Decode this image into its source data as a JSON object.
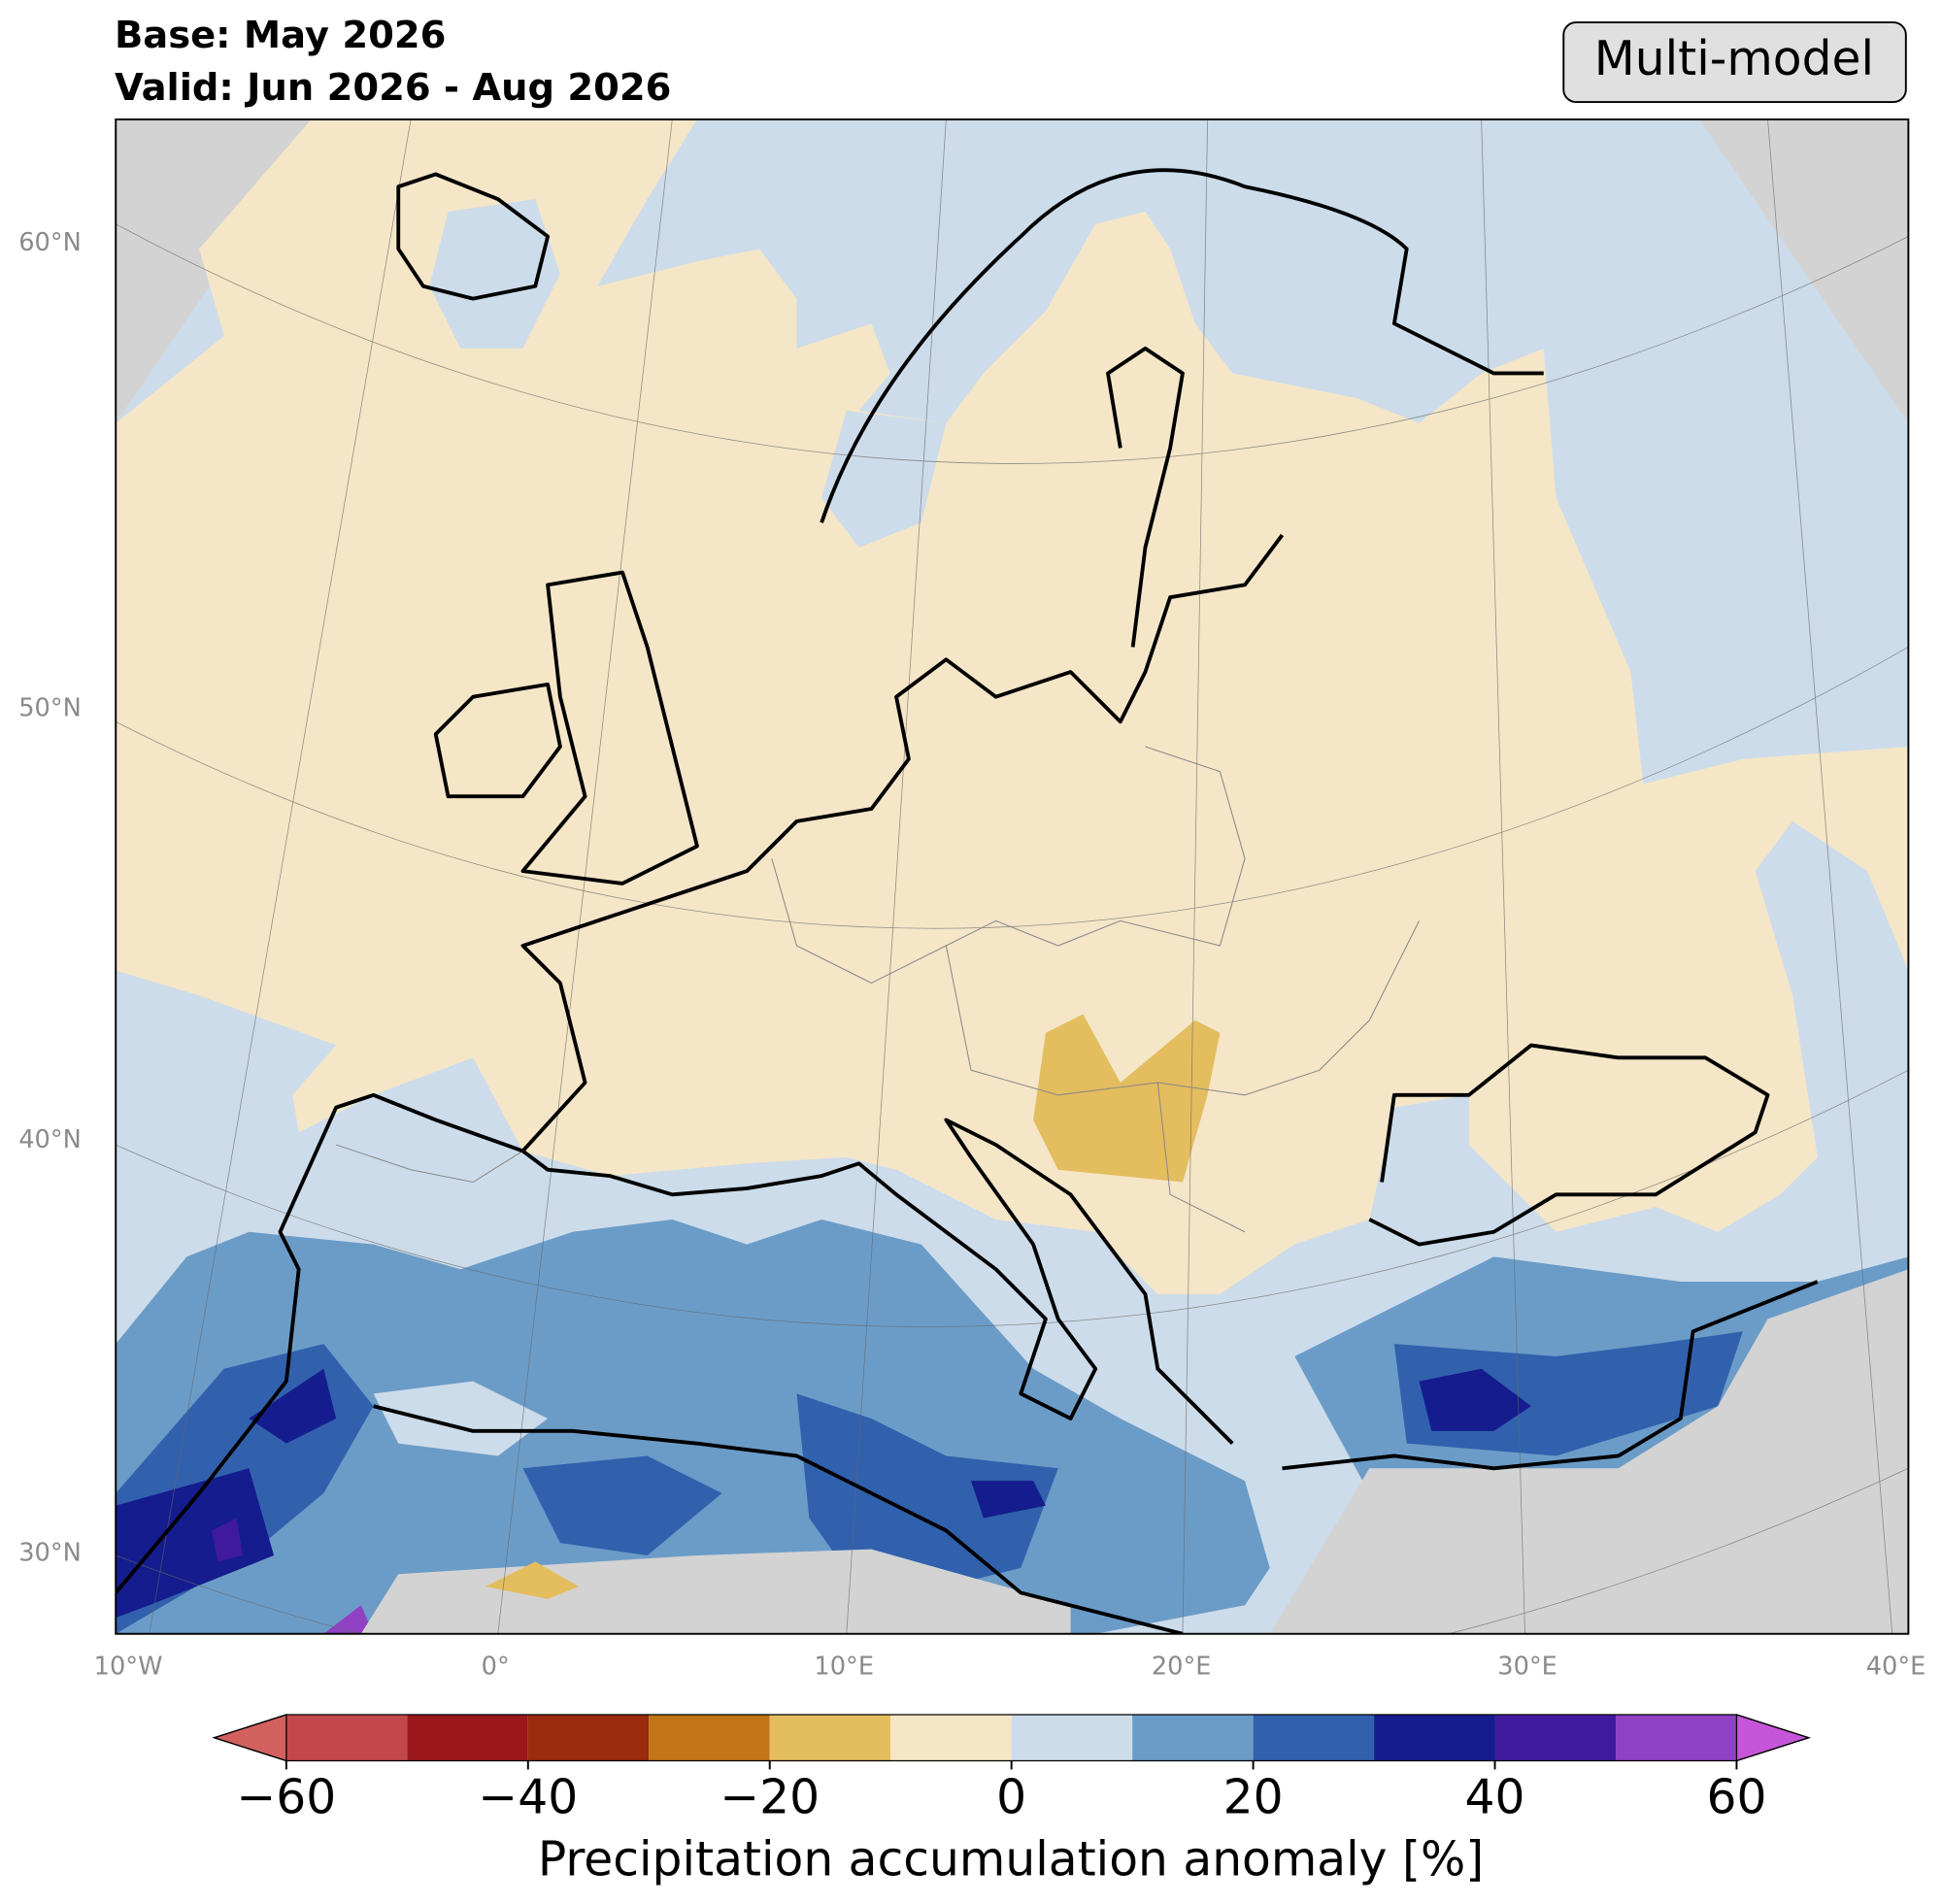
{
  "header": {
    "base": "Base: May 2026",
    "valid": "Valid: Jun 2026 - Aug 2026",
    "model": "Multi-model"
  },
  "map": {
    "lat_labels": [
      "60°N",
      "50°N",
      "40°N",
      "30°N"
    ],
    "lon_labels": [
      "10°W",
      "0°",
      "10°E",
      "20°E",
      "30°E",
      "40°E"
    ]
  },
  "colorbar": {
    "label": "Precipitation accumulation anomaly [%]",
    "bounds": [
      -60,
      -50,
      -40,
      -30,
      -20,
      -10,
      0,
      10,
      20,
      30,
      40,
      50,
      60
    ],
    "colors": [
      "#c3484b",
      "#9a181c",
      "#9b2a0e",
      "#c27517",
      "#e4bd5f",
      "#f4e6c7",
      "#cddcea",
      "#6b9cc8",
      "#3161ad",
      "#151c8e",
      "#3f1a9f",
      "#9141c4"
    ],
    "under_color": "#d2605f",
    "over_color": "#c656d9",
    "ticks": [
      {
        "value": -60,
        "label": "−60"
      },
      {
        "value": -40,
        "label": "−40"
      },
      {
        "value": -20,
        "label": "−20"
      },
      0,
      20,
      40,
      60
    ]
  }
}
